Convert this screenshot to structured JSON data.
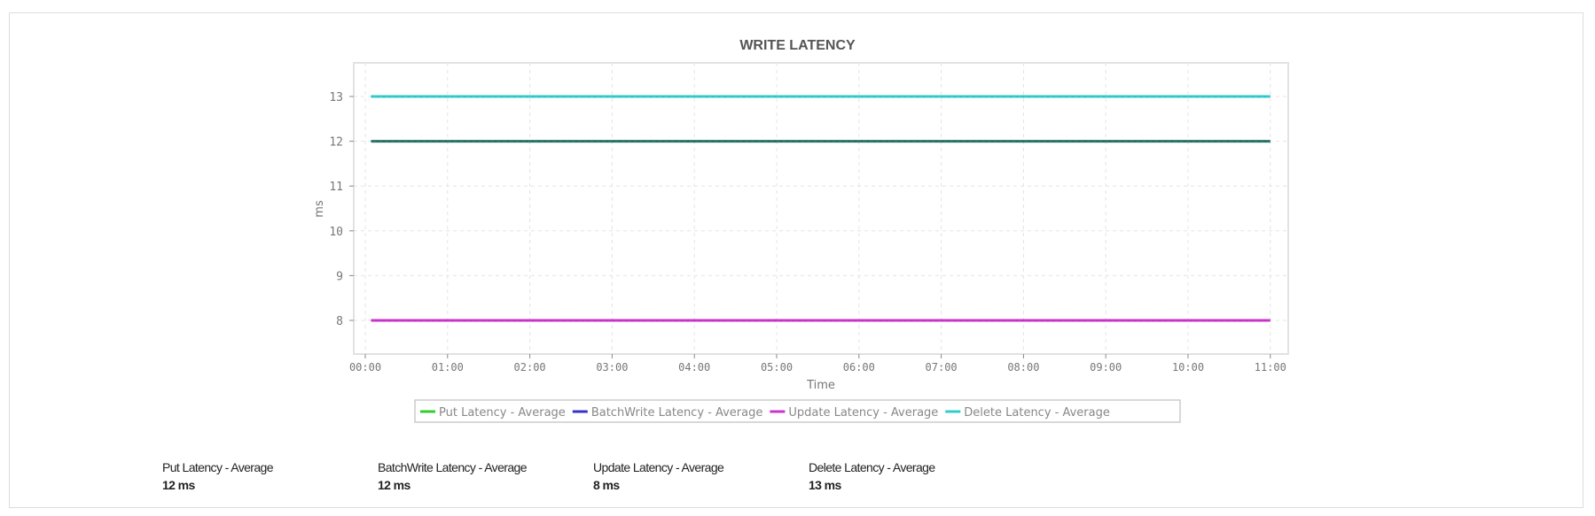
{
  "chart_data": {
    "type": "line",
    "title": "WRITE LATENCY",
    "xlabel": "Time",
    "ylabel": "ms",
    "x_ticks": [
      "00:00",
      "01:00",
      "02:00",
      "03:00",
      "04:00",
      "05:00",
      "06:00",
      "07:00",
      "08:00",
      "09:00",
      "10:00",
      "11:00"
    ],
    "y_ticks": [
      8,
      9,
      10,
      11,
      12,
      13
    ],
    "ylim": [
      7.3,
      13.75
    ],
    "xlim_hours": [
      -0.15,
      11.2
    ],
    "x_range_hours": [
      0.07,
      11.0
    ],
    "grid": true,
    "legend_placement": "bottom",
    "series": [
      {
        "name": "Put Latency - Average",
        "color": "#33cc33",
        "value": 12
      },
      {
        "name": "BatchWrite Latency - Average",
        "color": "#3333cc",
        "value": 12
      },
      {
        "name": "Update Latency - Average",
        "color": "#cc33cc",
        "value": 8
      },
      {
        "name": "Delete Latency - Average",
        "color": "#33cccc",
        "value": 13
      }
    ]
  },
  "summary": [
    {
      "label": "Put Latency - Average",
      "value": "12 ms"
    },
    {
      "label": "BatchWrite Latency - Average",
      "value": "12 ms"
    },
    {
      "label": "Update Latency - Average",
      "value": "8 ms"
    },
    {
      "label": "Delete Latency - Average",
      "value": "13 ms"
    }
  ]
}
